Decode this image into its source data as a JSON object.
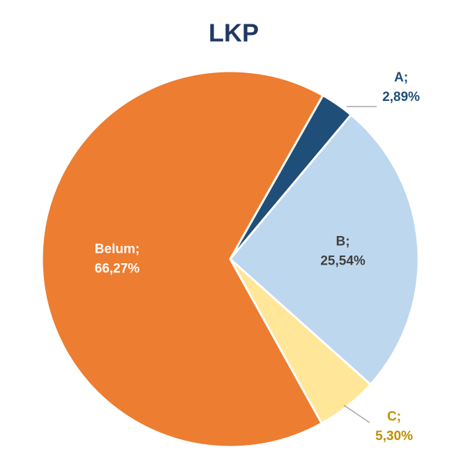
{
  "chart_data": {
    "type": "pie",
    "title": "LKP",
    "categories": [
      "A",
      "B",
      "C",
      "Belum"
    ],
    "label_separator": ";",
    "values": [
      2.89,
      25.54,
      5.3,
      66.27
    ],
    "value_labels": [
      "2,89%",
      "25,54%",
      "5,30%",
      "66,27%"
    ],
    "colors": [
      "#1f4e79",
      "#bdd7ee",
      "#ffe699",
      "#ed7d31"
    ],
    "label_colors": [
      "#1f4e79",
      "#404040",
      "#bf9000",
      "#ffffff"
    ]
  }
}
